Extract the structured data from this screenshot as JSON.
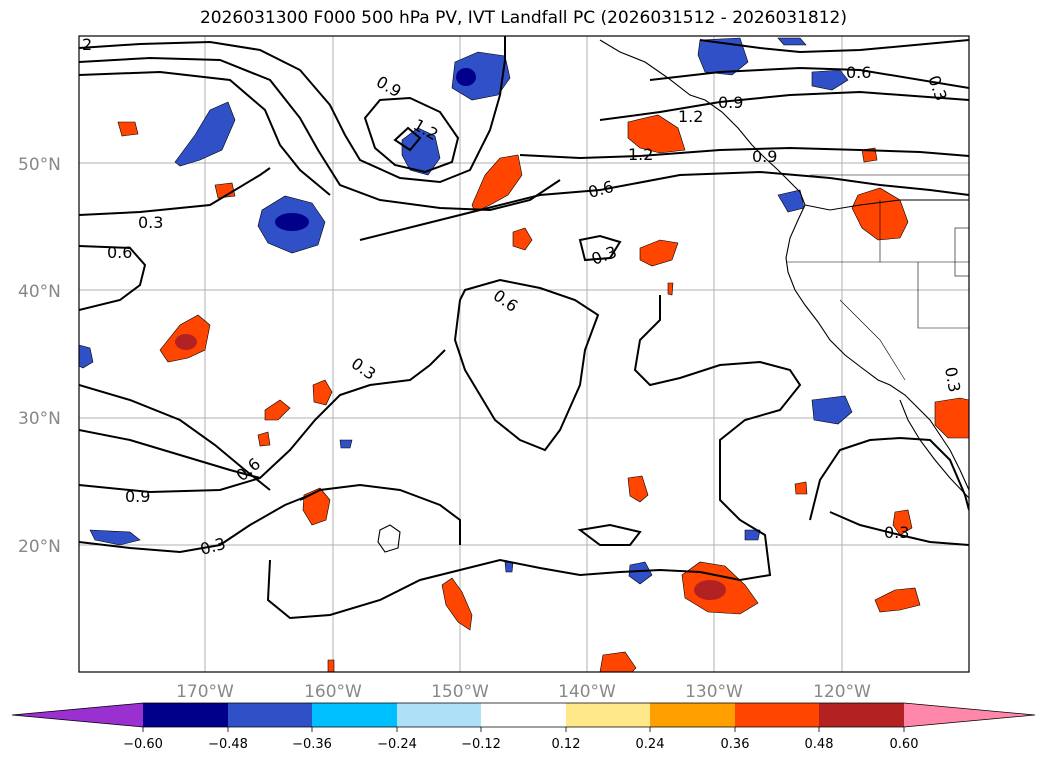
{
  "title": "2026031300 F000 500 hPa PV, IVT Landfall PC (2026031512 - 2026031812)",
  "lat_labels": [
    "50°N",
    "40°N",
    "30°N",
    "20°N"
  ],
  "lon_labels": [
    "170°W",
    "160°W",
    "150°W",
    "140°W",
    "130°W",
    "120°W"
  ],
  "contour_labels": [
    "2",
    "0.9",
    "1.2",
    "0.6",
    "0.9",
    "1.2",
    "1.2",
    "0.9",
    "0.3",
    "0.6",
    "0.3",
    "0.6",
    "0.3",
    "0.6",
    "0.3",
    "0.6",
    "0.9",
    "0.3",
    "0.3",
    "0.3"
  ],
  "colorbar": {
    "tick_labels": [
      "−0.60",
      "−0.48",
      "−0.36",
      "−0.24",
      "−0.12",
      "0.12",
      "0.24",
      "0.36",
      "0.48",
      "0.60"
    ],
    "colors": [
      "#9b30d0",
      "#00008b",
      "#3050c8",
      "#00bfff",
      "#aee0f8",
      "#ffffff",
      "#ffe88a",
      "#ffa000",
      "#ff4500",
      "#b22222",
      "#ff88aa"
    ]
  },
  "colors": {
    "contour": "#000000",
    "grid": "#b0b0b0",
    "coastline": "#000000"
  }
}
